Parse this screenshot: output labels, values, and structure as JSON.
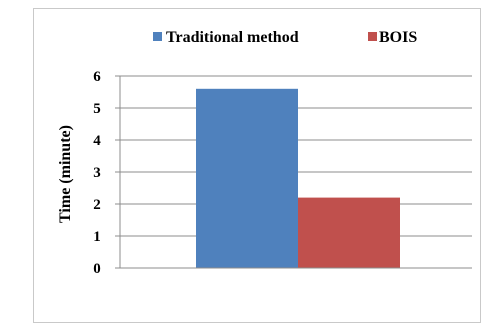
{
  "chart_data": {
    "type": "bar",
    "categories": [
      ""
    ],
    "series": [
      {
        "name": "Traditional method",
        "values": [
          5.6
        ],
        "color": "#4f81bd"
      },
      {
        "name": "BOIS",
        "values": [
          2.2
        ],
        "color": "#c0504d"
      }
    ],
    "title": "",
    "xlabel": "",
    "ylabel": "Time (minute)",
    "ylim": [
      0,
      6
    ],
    "yticks": [
      "0",
      "1",
      "2",
      "3",
      "4",
      "5",
      "6"
    ],
    "grid": true,
    "legend": "top"
  }
}
